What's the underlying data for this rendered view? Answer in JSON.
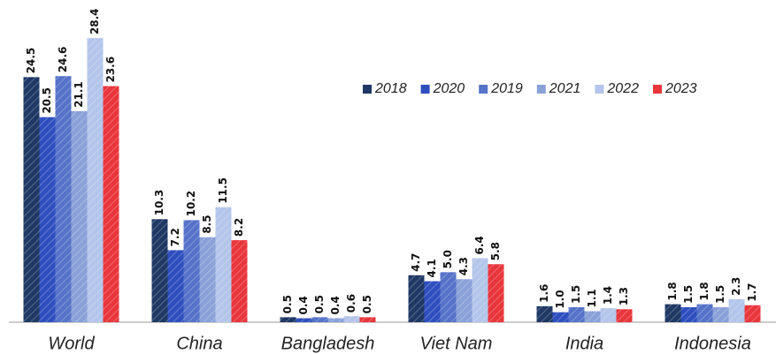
{
  "chart_data": {
    "type": "bar",
    "categories": [
      "World",
      "China",
      "Bangladesh",
      "Viet Nam",
      "India",
      "Indonesia"
    ],
    "ylim": [
      0,
      30
    ],
    "series": [
      {
        "name": "2018",
        "color": "#1f3864",
        "values": [
          24.5,
          10.3,
          0.5,
          4.7,
          1.6,
          1.8
        ],
        "value_labels": [
          "24.5",
          "10.3",
          "0.5",
          "4.7",
          "1.6",
          "1.8"
        ]
      },
      {
        "name": "2020",
        "color": "#2f4fbf",
        "values": [
          20.5,
          7.2,
          0.4,
          4.1,
          1.0,
          1.5
        ],
        "value_labels": [
          "20.5",
          "7.2",
          "0.4",
          "4.1",
          "1.0",
          "1.5"
        ]
      },
      {
        "name": "2019",
        "color": "#5673c9",
        "values": [
          24.6,
          10.2,
          0.5,
          5.0,
          1.5,
          1.8
        ],
        "value_labels": [
          "24.6",
          "10.2",
          "0.5",
          "5.0",
          "1.5",
          "1.8"
        ]
      },
      {
        "name": "2021",
        "color": "#8aa1d8",
        "values": [
          21.1,
          8.5,
          0.4,
          4.3,
          1.1,
          1.5
        ],
        "value_labels": [
          "21.1",
          "8.5",
          "0.4",
          "4.3",
          "1.1",
          "1.5"
        ]
      },
      {
        "name": "2022",
        "color": "#b3c5ea",
        "values": [
          28.4,
          11.5,
          0.6,
          6.4,
          1.4,
          2.3
        ],
        "value_labels": [
          "28.4",
          "11.5",
          "0.6",
          "6.4",
          "1.4",
          "2.3"
        ]
      },
      {
        "name": "2023",
        "color": "#e8363c",
        "values": [
          23.6,
          8.2,
          0.5,
          5.8,
          1.3,
          1.7
        ],
        "value_labels": [
          "23.6",
          "8.2",
          "0.5",
          "5.8",
          "1.3",
          "1.7"
        ]
      }
    ],
    "legend": "top-right"
  }
}
